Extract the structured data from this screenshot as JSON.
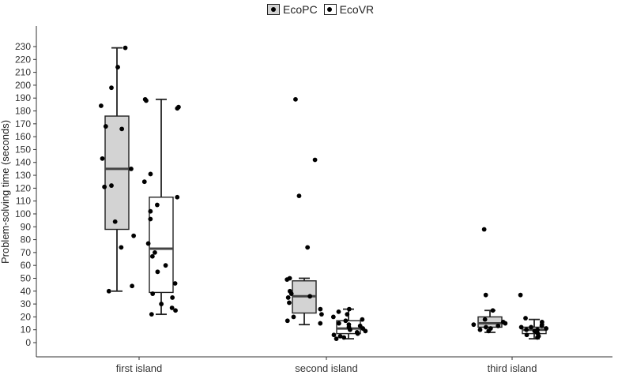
{
  "chart_data": {
    "type": "boxplot",
    "title": "",
    "xlabel": "",
    "ylabel": "Problem-solving time (seconds)",
    "ylim": [
      -12,
      238
    ],
    "yticks": [
      0,
      10,
      20,
      30,
      40,
      50,
      60,
      70,
      80,
      90,
      100,
      110,
      120,
      130,
      140,
      150,
      160,
      170,
      180,
      190,
      200,
      210,
      220,
      230
    ],
    "categories": [
      "first island",
      "second island",
      "third island"
    ],
    "legend_position": "top",
    "series": [
      {
        "name": "EcoPC",
        "fill": "#d3d3d3",
        "boxes": [
          {
            "category": "first island",
            "whisker_low": 40,
            "q1": 88,
            "median": 135,
            "q3": 176,
            "whisker_high": 229,
            "points": [
              229,
              214,
              198,
              184,
              168,
              166,
              143,
              135,
              122,
              121,
              94,
              83,
              74,
              44,
              40
            ]
          },
          {
            "category": "second island",
            "whisker_low": 14,
            "q1": 23,
            "median": 36,
            "q3": 48,
            "whisker_high": 50,
            "points": [
              189,
              142,
              114,
              74,
              50,
              49,
              40,
              38,
              36,
              35,
              31,
              26,
              22,
              20,
              17,
              15
            ]
          },
          {
            "category": "third island",
            "whisker_low": 8,
            "q1": 12,
            "median": 15,
            "q3": 20,
            "whisker_high": 25,
            "points": [
              88,
              37,
              25,
              18,
              16,
              15,
              14,
              13,
              12,
              11,
              10,
              9
            ]
          }
        ]
      },
      {
        "name": "EcoVR",
        "fill": "#ffffff",
        "boxes": [
          {
            "category": "first island",
            "whisker_low": 22,
            "q1": 39,
            "median": 73,
            "q3": 113,
            "whisker_high": 189,
            "points": [
              189,
              188,
              182,
              183,
              131,
              125,
              113,
              107,
              102,
              96,
              77,
              70,
              67,
              60,
              55,
              46,
              38,
              35,
              30,
              27,
              25,
              22
            ]
          },
          {
            "category": "second island",
            "whisker_low": 3,
            "q1": 7,
            "median": 11,
            "q3": 17,
            "whisker_high": 26,
            "points": [
              26,
              24,
              22,
              20,
              18,
              17,
              15,
              14,
              13,
              12,
              11,
              10,
              9,
              8,
              7,
              6,
              5,
              4,
              3
            ]
          },
          {
            "category": "third island",
            "whisker_low": 3,
            "q1": 7,
            "median": 10,
            "q3": 12,
            "whisker_high": 18,
            "points": [
              37,
              19,
              16,
              14,
              13,
              12,
              12,
              11,
              10,
              10,
              9,
              9,
              8,
              7,
              6,
              5,
              4
            ]
          }
        ]
      }
    ]
  }
}
